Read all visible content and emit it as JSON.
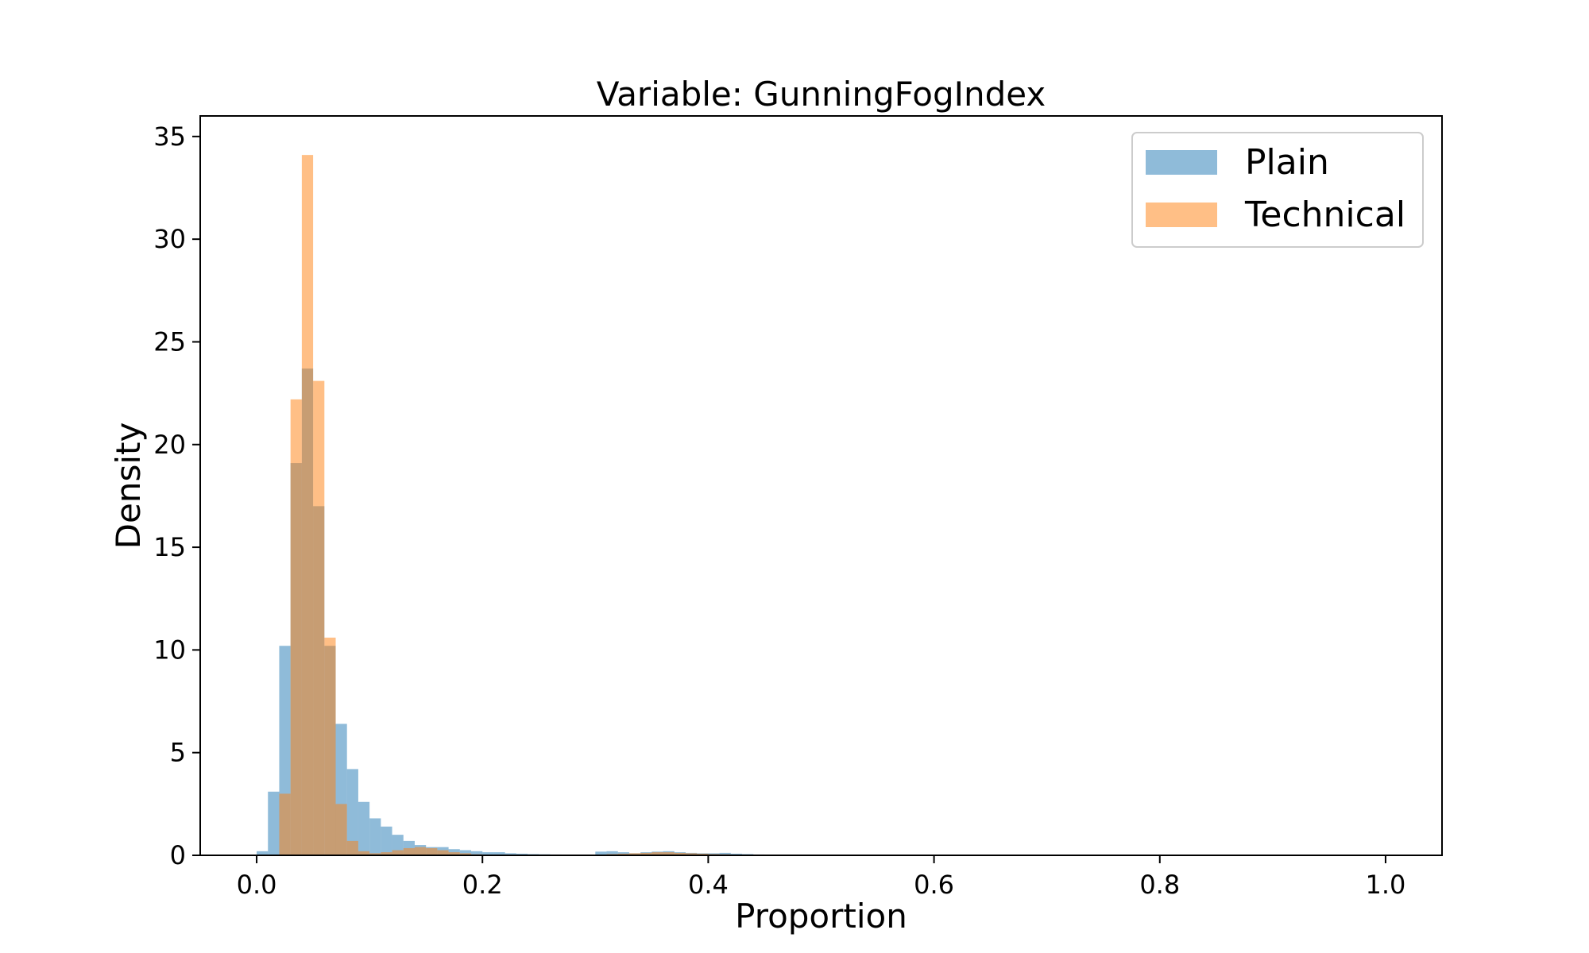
{
  "chart_data": {
    "type": "bar",
    "subtype": "histogram",
    "title": "Variable: GunningFogIndex",
    "xlabel": "Proportion",
    "ylabel": "Density",
    "xlim": [
      -0.05,
      1.05
    ],
    "ylim": [
      0,
      36
    ],
    "xticks": [
      "0.0",
      "0.2",
      "0.4",
      "0.6",
      "0.8",
      "1.0"
    ],
    "xtick_values": [
      0.0,
      0.2,
      0.4,
      0.6,
      0.8,
      1.0
    ],
    "yticks": [
      "0",
      "5",
      "10",
      "15",
      "20",
      "25",
      "30",
      "35"
    ],
    "ytick_values": [
      0,
      5,
      10,
      15,
      20,
      25,
      30,
      35
    ],
    "legend": {
      "placement": "upper-right",
      "entries": [
        "Plain",
        "Technical"
      ]
    },
    "grid": false,
    "bin_width": 0.01,
    "series": [
      {
        "name": "Plain",
        "color": "#1f77b4",
        "opacity": 0.5,
        "bin_edges_start": 0.0,
        "values": [
          0.2,
          3.1,
          10.2,
          19.1,
          23.7,
          17.0,
          10.2,
          6.4,
          4.2,
          2.6,
          1.8,
          1.4,
          1.0,
          0.7,
          0.5,
          0.4,
          0.4,
          0.3,
          0.25,
          0.2,
          0.15,
          0.15,
          0.1,
          0.08,
          0.06,
          0.05,
          0.04,
          0.03,
          0.03,
          0.03,
          0.18,
          0.2,
          0.15,
          0.1,
          0.15,
          0.18,
          0.2,
          0.15,
          0.12,
          0.1,
          0.1,
          0.12,
          0.08,
          0.06,
          0.04,
          0.03,
          0.02,
          0.01
        ]
      },
      {
        "name": "Technical",
        "color": "#ff7f0e",
        "opacity": 0.5,
        "bin_edges_start": 0.0,
        "values": [
          0,
          0,
          3.0,
          22.2,
          34.1,
          23.1,
          10.6,
          2.5,
          0.7,
          0.2,
          0.1,
          0.15,
          0.25,
          0.35,
          0.4,
          0.35,
          0.25,
          0.15,
          0.1,
          0.05,
          0.03,
          0.02,
          0.02,
          0.01,
          0.01,
          0.01,
          0.01,
          0.01,
          0.01,
          0.02,
          0.04,
          0.06,
          0.08,
          0.1,
          0.12,
          0.15,
          0.15,
          0.12,
          0.1,
          0.08,
          0.06,
          0.05,
          0.04,
          0.03,
          0.03,
          0.02,
          0.01,
          0.01
        ]
      }
    ]
  }
}
